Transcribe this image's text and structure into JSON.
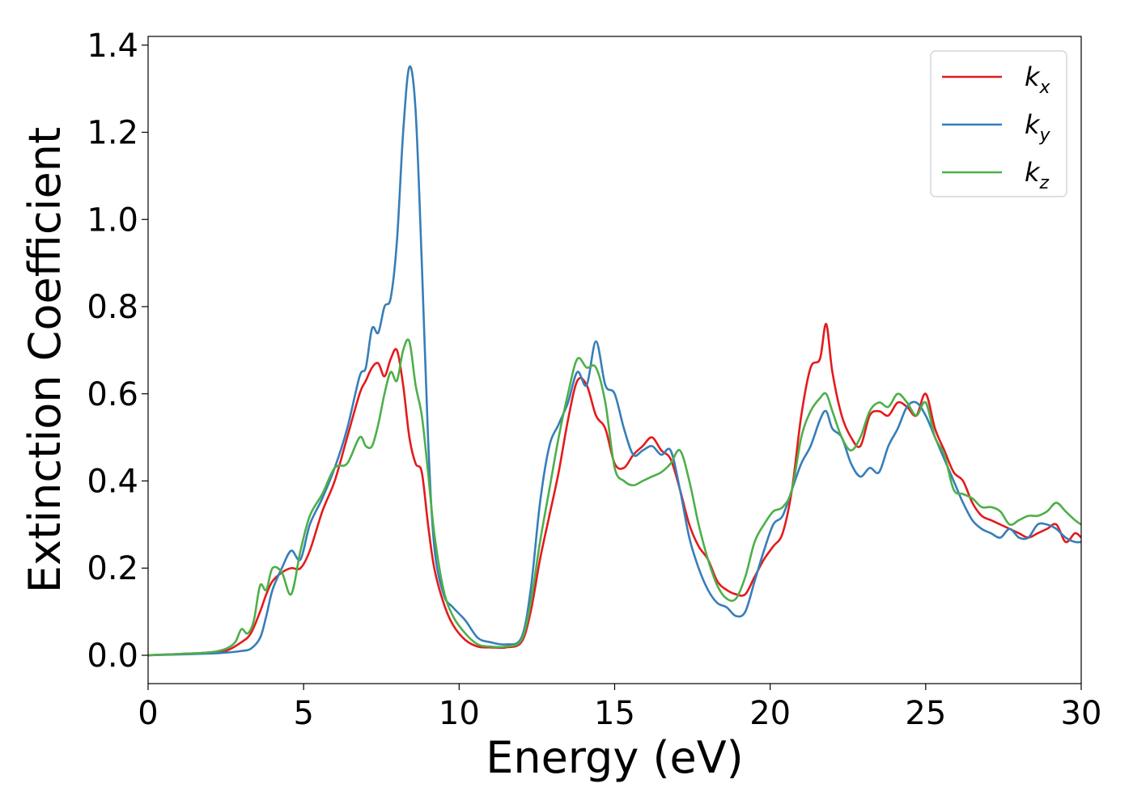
{
  "chart_data": {
    "type": "line",
    "title": "",
    "xlabel": "Energy (eV)",
    "ylabel": "Extinction Coefficient",
    "xlim": [
      0,
      30
    ],
    "ylim": [
      -0.065,
      1.42
    ],
    "xticks": [
      0,
      5,
      10,
      15,
      20,
      25,
      30
    ],
    "xtick_labels": [
      "0",
      "5",
      "10",
      "15",
      "20",
      "25",
      "30"
    ],
    "yticks": [
      0.0,
      0.2,
      0.4,
      0.6,
      0.8,
      1.0,
      1.2,
      1.4
    ],
    "ytick_labels": [
      "0.0",
      "0.2",
      "0.4",
      "0.6",
      "0.8",
      "1.0",
      "1.2",
      "1.4"
    ],
    "grid": false,
    "legend_position": "top-right",
    "series": [
      {
        "name": "k",
        "subscript": "x",
        "color": "#e41a1c",
        "x": [
          0,
          1,
          2,
          2.5,
          3,
          3.3,
          3.6,
          3.8,
          4.0,
          4.3,
          4.6,
          4.9,
          5.2,
          5.6,
          6.0,
          6.4,
          6.8,
          7.0,
          7.2,
          7.4,
          7.6,
          7.8,
          8.0,
          8.2,
          8.4,
          8.6,
          8.8,
          9.0,
          9.2,
          9.5,
          9.8,
          10.2,
          10.6,
          11.0,
          11.5,
          12.0,
          12.3,
          12.6,
          12.9,
          13.2,
          13.5,
          13.8,
          14.1,
          14.4,
          14.7,
          15.0,
          15.3,
          15.6,
          15.9,
          16.2,
          16.5,
          16.8,
          17.1,
          17.4,
          17.7,
          18.0,
          18.3,
          18.6,
          18.9,
          19.2,
          19.5,
          19.8,
          20.1,
          20.4,
          20.7,
          21.0,
          21.3,
          21.6,
          21.8,
          22.0,
          22.3,
          22.6,
          22.9,
          23.2,
          23.5,
          23.8,
          24.1,
          24.4,
          24.7,
          25.0,
          25.3,
          25.6,
          25.9,
          26.2,
          26.5,
          26.8,
          27.1,
          27.4,
          27.7,
          28.0,
          28.3,
          28.6,
          28.9,
          29.2,
          29.5,
          29.8,
          30.0
        ],
        "y": [
          0.0,
          0.003,
          0.006,
          0.01,
          0.03,
          0.05,
          0.1,
          0.14,
          0.17,
          0.19,
          0.2,
          0.2,
          0.24,
          0.33,
          0.4,
          0.5,
          0.6,
          0.63,
          0.66,
          0.67,
          0.64,
          0.68,
          0.7,
          0.62,
          0.5,
          0.44,
          0.42,
          0.3,
          0.2,
          0.12,
          0.07,
          0.035,
          0.02,
          0.018,
          0.018,
          0.03,
          0.1,
          0.22,
          0.32,
          0.42,
          0.54,
          0.63,
          0.62,
          0.55,
          0.52,
          0.44,
          0.43,
          0.46,
          0.48,
          0.5,
          0.47,
          0.45,
          0.38,
          0.3,
          0.25,
          0.22,
          0.17,
          0.15,
          0.14,
          0.14,
          0.18,
          0.22,
          0.25,
          0.28,
          0.38,
          0.55,
          0.66,
          0.68,
          0.76,
          0.65,
          0.55,
          0.5,
          0.48,
          0.55,
          0.56,
          0.55,
          0.58,
          0.57,
          0.55,
          0.6,
          0.52,
          0.47,
          0.42,
          0.4,
          0.35,
          0.32,
          0.31,
          0.3,
          0.29,
          0.28,
          0.27,
          0.28,
          0.29,
          0.3,
          0.26,
          0.28,
          0.27
        ]
      },
      {
        "name": "k",
        "subscript": "y",
        "color": "#377eb8",
        "x": [
          0,
          1,
          2,
          2.5,
          3,
          3.3,
          3.6,
          3.8,
          4.0,
          4.3,
          4.6,
          4.9,
          5.2,
          5.6,
          6.0,
          6.4,
          6.8,
          7.0,
          7.2,
          7.4,
          7.6,
          7.8,
          8.0,
          8.2,
          8.4,
          8.6,
          8.8,
          9.0,
          9.2,
          9.5,
          9.8,
          10.2,
          10.6,
          11.0,
          11.5,
          12.0,
          12.3,
          12.6,
          12.9,
          13.2,
          13.5,
          13.8,
          14.1,
          14.4,
          14.7,
          15.0,
          15.3,
          15.6,
          15.9,
          16.2,
          16.5,
          16.8,
          17.1,
          17.4,
          17.7,
          18.0,
          18.3,
          18.6,
          18.9,
          19.2,
          19.5,
          19.8,
          20.1,
          20.4,
          20.7,
          21.0,
          21.3,
          21.6,
          21.8,
          22.0,
          22.3,
          22.6,
          22.9,
          23.2,
          23.5,
          23.8,
          24.1,
          24.4,
          24.7,
          25.0,
          25.3,
          25.6,
          25.9,
          26.2,
          26.5,
          26.8,
          27.1,
          27.4,
          27.7,
          28.0,
          28.3,
          28.6,
          28.9,
          29.2,
          29.5,
          29.8,
          30.0
        ],
        "y": [
          0.0,
          0.002,
          0.004,
          0.006,
          0.01,
          0.015,
          0.04,
          0.09,
          0.15,
          0.2,
          0.24,
          0.22,
          0.3,
          0.36,
          0.43,
          0.52,
          0.64,
          0.66,
          0.75,
          0.74,
          0.8,
          0.82,
          0.95,
          1.2,
          1.35,
          1.25,
          0.9,
          0.5,
          0.25,
          0.14,
          0.11,
          0.08,
          0.04,
          0.03,
          0.025,
          0.04,
          0.15,
          0.35,
          0.48,
          0.53,
          0.58,
          0.65,
          0.62,
          0.72,
          0.62,
          0.6,
          0.52,
          0.46,
          0.47,
          0.48,
          0.46,
          0.47,
          0.38,
          0.27,
          0.2,
          0.15,
          0.12,
          0.11,
          0.09,
          0.1,
          0.17,
          0.24,
          0.3,
          0.32,
          0.38,
          0.44,
          0.48,
          0.54,
          0.56,
          0.52,
          0.5,
          0.44,
          0.41,
          0.43,
          0.42,
          0.48,
          0.52,
          0.57,
          0.58,
          0.55,
          0.5,
          0.45,
          0.4,
          0.35,
          0.31,
          0.29,
          0.28,
          0.27,
          0.29,
          0.27,
          0.27,
          0.3,
          0.3,
          0.29,
          0.27,
          0.26,
          0.26
        ]
      },
      {
        "name": "k",
        "subscript": "z",
        "color": "#4daf4a",
        "x": [
          0,
          1,
          2,
          2.5,
          2.8,
          3.0,
          3.2,
          3.4,
          3.6,
          3.8,
          4.0,
          4.3,
          4.6,
          4.9,
          5.2,
          5.6,
          6.0,
          6.4,
          6.8,
          7.0,
          7.2,
          7.4,
          7.6,
          7.8,
          8.0,
          8.2,
          8.4,
          8.6,
          8.8,
          9.0,
          9.2,
          9.5,
          9.8,
          10.2,
          10.6,
          11.0,
          11.5,
          12.0,
          12.3,
          12.6,
          12.9,
          13.2,
          13.5,
          13.8,
          14.1,
          14.4,
          14.7,
          15.0,
          15.3,
          15.6,
          15.9,
          16.2,
          16.5,
          16.8,
          17.1,
          17.4,
          17.7,
          18.0,
          18.3,
          18.6,
          18.9,
          19.2,
          19.5,
          19.8,
          20.1,
          20.4,
          20.7,
          21.0,
          21.3,
          21.6,
          21.8,
          22.0,
          22.3,
          22.6,
          22.9,
          23.2,
          23.5,
          23.8,
          24.1,
          24.4,
          24.7,
          25.0,
          25.3,
          25.6,
          25.9,
          26.2,
          26.5,
          26.8,
          27.1,
          27.4,
          27.7,
          28.0,
          28.3,
          28.6,
          28.9,
          29.2,
          29.5,
          29.8,
          30.0
        ],
        "y": [
          0.0,
          0.003,
          0.007,
          0.015,
          0.03,
          0.06,
          0.05,
          0.08,
          0.16,
          0.15,
          0.2,
          0.19,
          0.14,
          0.24,
          0.32,
          0.37,
          0.43,
          0.44,
          0.5,
          0.48,
          0.48,
          0.53,
          0.6,
          0.65,
          0.63,
          0.7,
          0.72,
          0.62,
          0.55,
          0.42,
          0.28,
          0.15,
          0.09,
          0.05,
          0.025,
          0.02,
          0.02,
          0.035,
          0.12,
          0.26,
          0.38,
          0.5,
          0.6,
          0.68,
          0.66,
          0.66,
          0.58,
          0.43,
          0.4,
          0.39,
          0.4,
          0.41,
          0.42,
          0.44,
          0.47,
          0.4,
          0.3,
          0.22,
          0.16,
          0.13,
          0.13,
          0.18,
          0.26,
          0.3,
          0.33,
          0.34,
          0.38,
          0.5,
          0.56,
          0.59,
          0.6,
          0.56,
          0.5,
          0.47,
          0.5,
          0.56,
          0.58,
          0.57,
          0.6,
          0.58,
          0.55,
          0.58,
          0.5,
          0.46,
          0.38,
          0.37,
          0.36,
          0.34,
          0.34,
          0.33,
          0.3,
          0.31,
          0.32,
          0.32,
          0.33,
          0.35,
          0.33,
          0.31,
          0.3
        ]
      }
    ]
  }
}
